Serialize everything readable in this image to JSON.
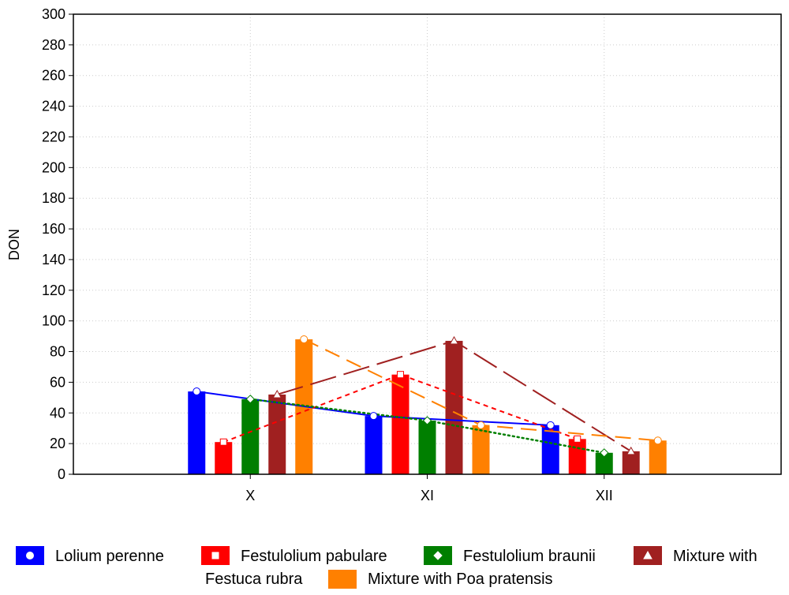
{
  "chart_data": {
    "type": "bar",
    "title": "",
    "xlabel": "",
    "ylabel": "DON",
    "ylim": [
      0,
      300
    ],
    "yticks": [
      "0",
      "20",
      "40",
      "60",
      "80",
      "100",
      "120",
      "140",
      "160",
      "180",
      "200",
      "220",
      "240",
      "260",
      "280",
      "300"
    ],
    "categories": [
      "X",
      "XI",
      "XII"
    ],
    "grid": true,
    "legend_position": "bottom",
    "series": [
      {
        "name": "Lolium perenne",
        "color": "#0000ff",
        "values": [
          54,
          38,
          32
        ],
        "marker": "circle",
        "line_style": "solid"
      },
      {
        "name": "Festulolium pabulare",
        "color": "#ff0000",
        "values": [
          21,
          65,
          23
        ],
        "marker": "square",
        "line_style": "short-dash"
      },
      {
        "name": "Festulolium braunii",
        "color": "#007f00",
        "values": [
          49,
          35,
          14
        ],
        "marker": "diamond",
        "line_style": "dotted"
      },
      {
        "name": "Mixture with Festuca rubra",
        "color": "#a02020",
        "values": [
          52,
          87,
          15
        ],
        "marker": "triangle",
        "line_style": "long-dash"
      },
      {
        "name": "Mixture with Poa pratensis",
        "color": "#ff8000",
        "values": [
          88,
          32,
          22
        ],
        "marker": "circle",
        "line_style": "dash"
      }
    ],
    "legend_lines": [
      [
        "Lolium perenne",
        "Festulolium pabulare",
        "Festulolium braunii",
        "Mixture with"
      ],
      [
        "Festuca rubra",
        "Mixture with Poa pratensis"
      ]
    ]
  }
}
